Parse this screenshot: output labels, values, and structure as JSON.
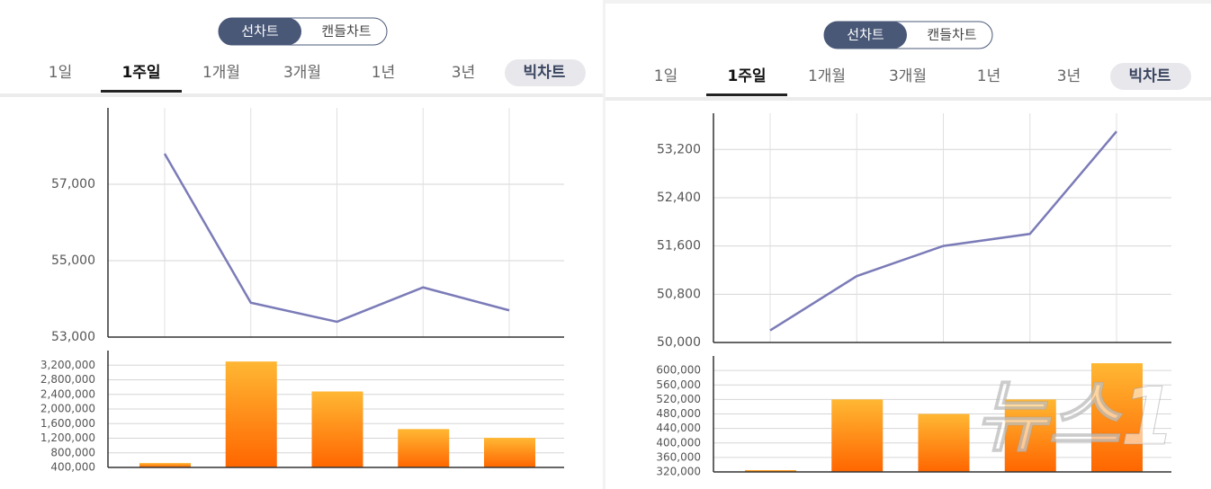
{
  "panels": [
    {
      "toggle": [
        "선차트",
        "캔들차트"
      ],
      "tabs": [
        "1일",
        "1주일",
        "1개월",
        "3개월",
        "1년",
        "3년",
        "빅차트"
      ]
    },
    {
      "toggle": [
        "선차트",
        "캔들차트"
      ],
      "tabs": [
        "1일",
        "1주일",
        "1개월",
        "3개월",
        "1년",
        "3년",
        "빅차트"
      ]
    }
  ],
  "watermark": "뉴스1",
  "chart_data": [
    {
      "type": "line",
      "categories": [
        null,
        null,
        null,
        null,
        null
      ],
      "values": [
        57800,
        53900,
        53400,
        54300,
        53700
      ],
      "color": "#7b7bb8",
      "ylim": [
        53000,
        59000
      ],
      "yticks": [
        {
          "value": 53000,
          "label": "53,000"
        },
        {
          "value": 55000,
          "label": "55,000"
        },
        {
          "value": 57000,
          "label": "57,000"
        }
      ],
      "grid": true
    },
    {
      "type": "bar",
      "categories": [
        null,
        null,
        null,
        null,
        null
      ],
      "values": [
        520000,
        3300000,
        2480000,
        1450000,
        1210000
      ],
      "colors": [
        "#ffb733",
        "#ff6600"
      ],
      "ylim": [
        400000,
        3600000
      ],
      "yticks": [
        {
          "value": 400000,
          "label": "400,000"
        },
        {
          "value": 800000,
          "label": "800,000"
        },
        {
          "value": 1200000,
          "label": "1,200,000"
        },
        {
          "value": 1600000,
          "label": "1,600,000"
        },
        {
          "value": 2000000,
          "label": "2,000,000"
        },
        {
          "value": 2400000,
          "label": "2,400,000"
        },
        {
          "value": 2800000,
          "label": "2,800,000"
        },
        {
          "value": 3200000,
          "label": "3,200,000"
        }
      ],
      "grid": true
    },
    {
      "type": "line",
      "categories": [
        null,
        null,
        null,
        null,
        null
      ],
      "values": [
        50200,
        51100,
        51600,
        51800,
        53500
      ],
      "color": "#7b7bb8",
      "ylim": [
        50000,
        53800
      ],
      "yticks": [
        {
          "value": 50000,
          "label": "50,000"
        },
        {
          "value": 50800,
          "label": "50,800"
        },
        {
          "value": 51600,
          "label": "51,600"
        },
        {
          "value": 52400,
          "label": "52,400"
        },
        {
          "value": 53200,
          "label": "53,200"
        }
      ],
      "grid": true
    },
    {
      "type": "bar",
      "categories": [
        null,
        null,
        null,
        null,
        null
      ],
      "values": [
        325000,
        520000,
        480000,
        520000,
        620000
      ],
      "colors": [
        "#ffb733",
        "#ff6600"
      ],
      "ylim": [
        320000,
        640000
      ],
      "yticks": [
        {
          "value": 320000,
          "label": "320,000"
        },
        {
          "value": 360000,
          "label": "360,000"
        },
        {
          "value": 400000,
          "label": "400,000"
        },
        {
          "value": 440000,
          "label": "440,000"
        },
        {
          "value": 480000,
          "label": "480,000"
        },
        {
          "value": 520000,
          "label": "520,000"
        },
        {
          "value": 560000,
          "label": "560,000"
        },
        {
          "value": 600000,
          "label": "600,000"
        }
      ],
      "grid": true
    }
  ]
}
